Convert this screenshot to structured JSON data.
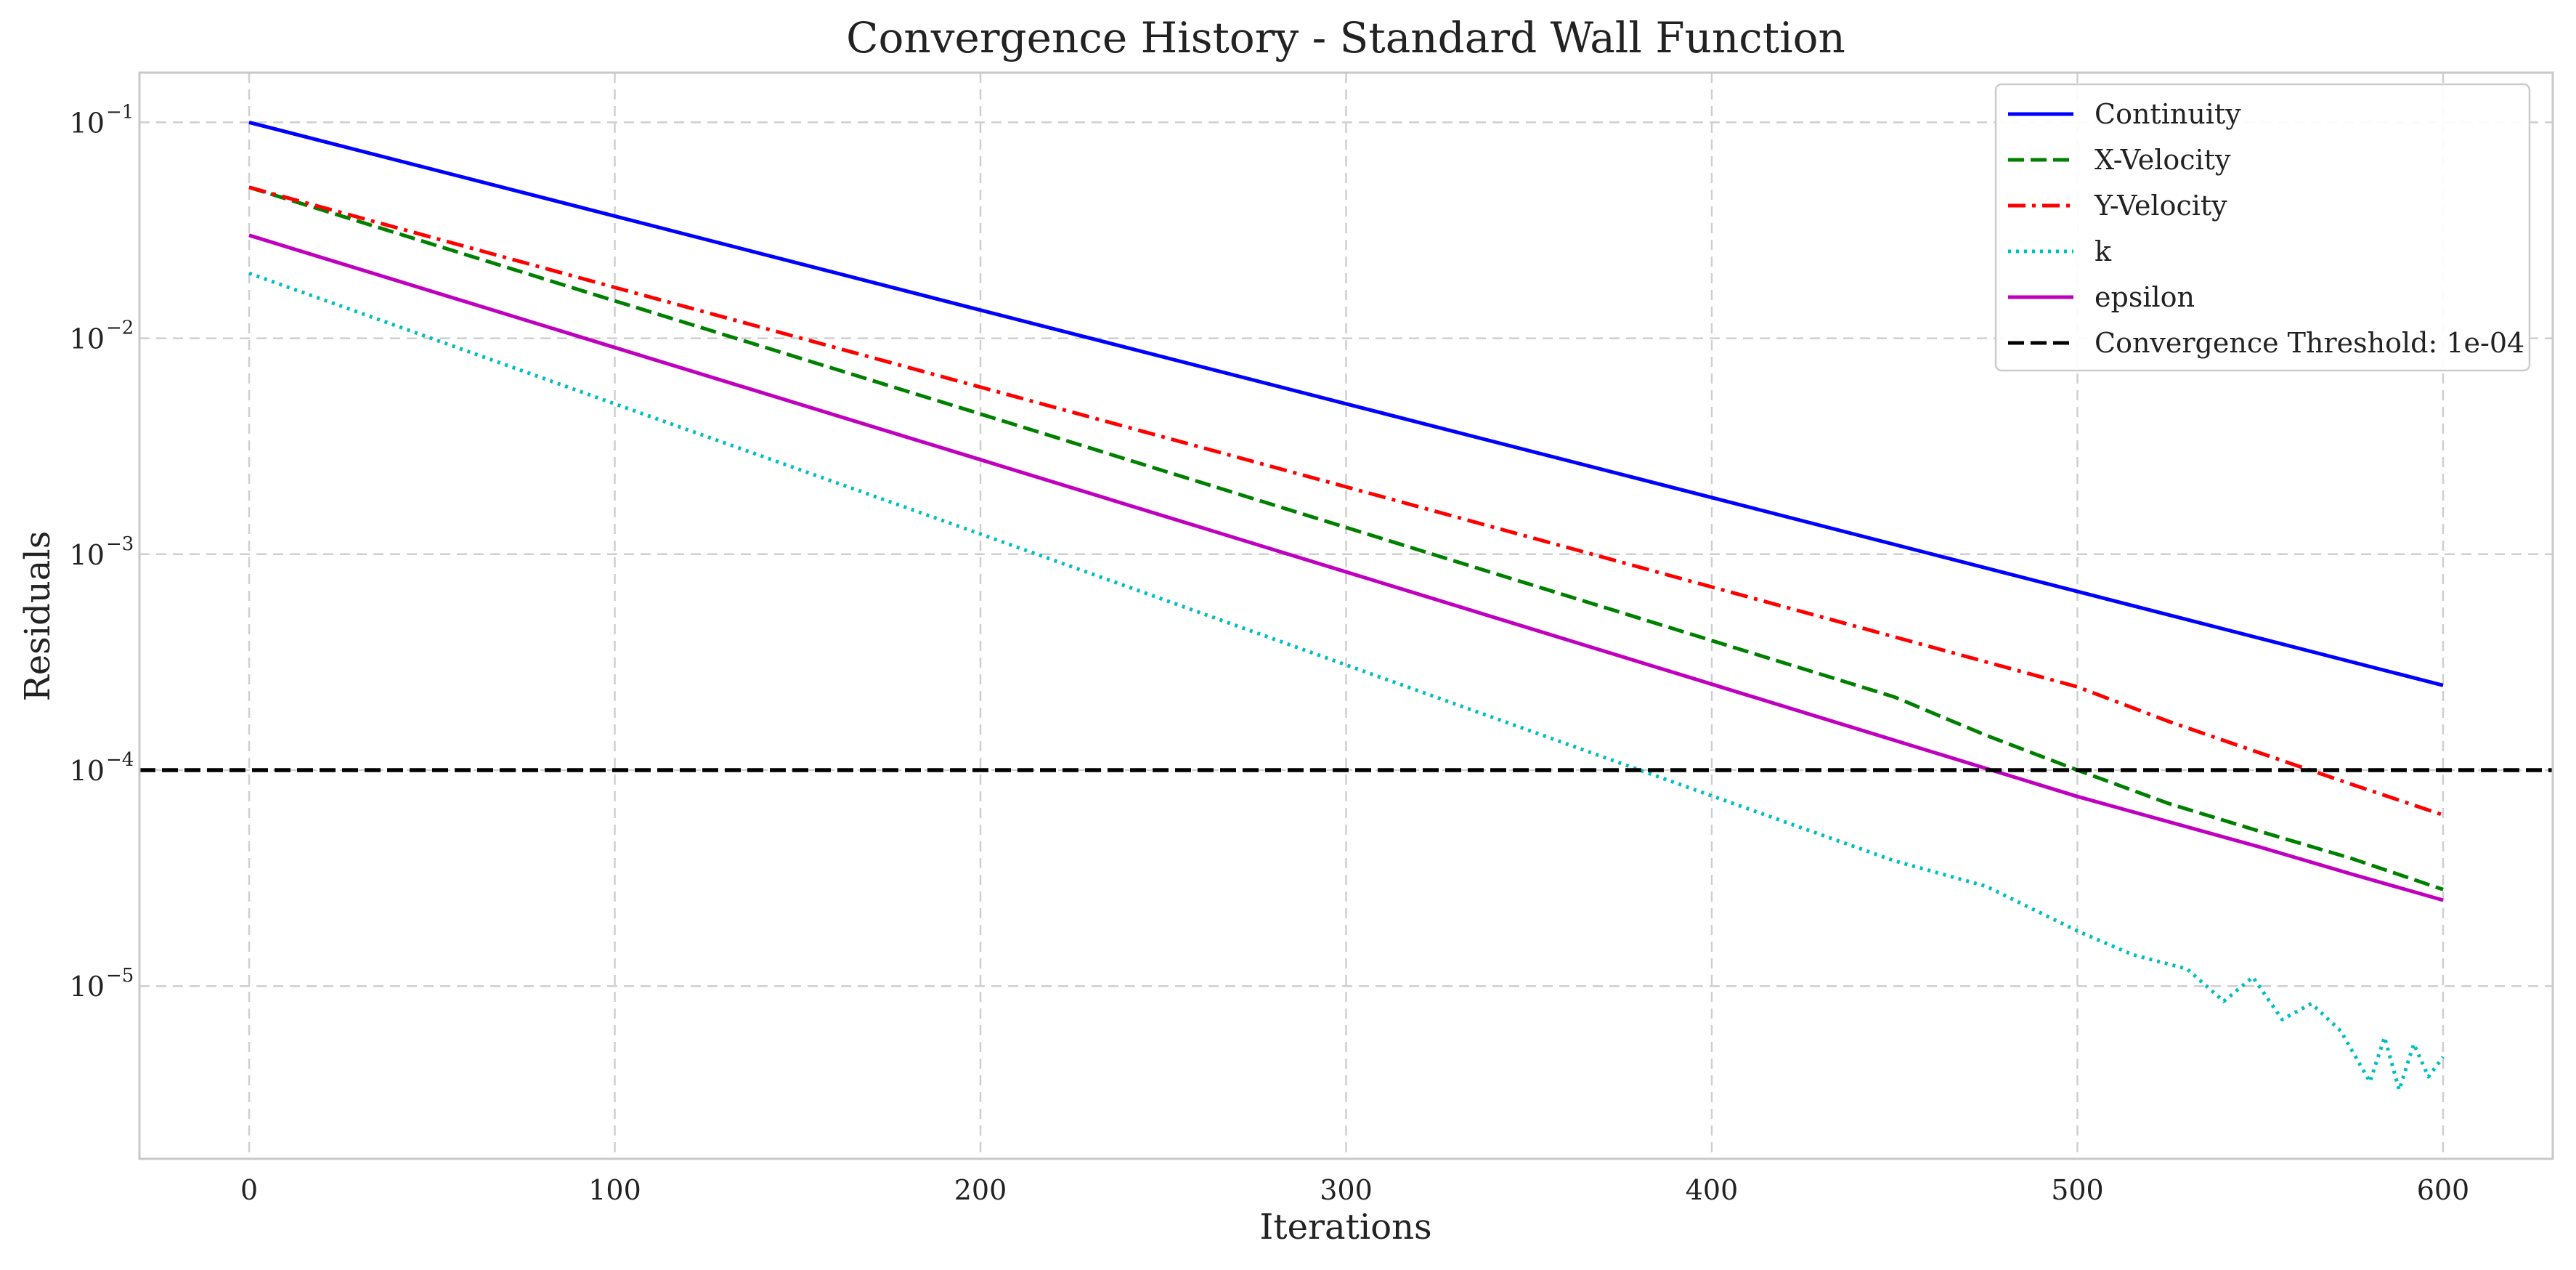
{
  "chart_data": {
    "type": "line",
    "title": "Convergence History - Standard Wall Function",
    "xlabel": "Iterations",
    "ylabel": "Residuals",
    "xlim": [
      -30,
      630
    ],
    "ylim_log10": [
      -5.8,
      -0.77
    ],
    "y_scale": "log",
    "grid": true,
    "legend_position": "top-right",
    "x_ticks": [
      {
        "value": 0,
        "label": "0"
      },
      {
        "value": 100,
        "label": "100"
      },
      {
        "value": 200,
        "label": "200"
      },
      {
        "value": 300,
        "label": "300"
      },
      {
        "value": 400,
        "label": "400"
      },
      {
        "value": 500,
        "label": "500"
      },
      {
        "value": 600,
        "label": "600"
      }
    ],
    "y_ticks": [
      {
        "log10": -1,
        "base": "10",
        "exp": "−1"
      },
      {
        "log10": -2,
        "base": "10",
        "exp": "−2"
      },
      {
        "log10": -3,
        "base": "10",
        "exp": "−3"
      },
      {
        "log10": -4,
        "base": "10",
        "exp": "−4"
      },
      {
        "log10": -5,
        "base": "10",
        "exp": "−5"
      }
    ],
    "threshold": {
      "name": "Convergence Threshold: 1e-04",
      "value": 0.0001,
      "color": "#000000",
      "style": "dashed"
    },
    "series": [
      {
        "name": "Continuity",
        "color": "#0000ff",
        "style": "solid",
        "x": [
          0,
          100,
          200,
          300,
          400,
          500,
          600
        ],
        "values": [
          0.1,
          0.0368,
          0.0135,
          0.00497,
          0.00183,
          0.000672,
          0.000247
        ]
      },
      {
        "name": "X-Velocity",
        "color": "#008000",
        "style": "dashed",
        "x": [
          0,
          100,
          200,
          300,
          400,
          450,
          475,
          500,
          525,
          550,
          575,
          600
        ],
        "values": [
          0.05,
          0.0149,
          0.00446,
          0.00133,
          0.000398,
          0.000218,
          0.000145,
          0.0001,
          7e-05,
          5.2e-05,
          3.9e-05,
          2.8e-05
        ]
      },
      {
        "name": "Y-Velocity",
        "color": "#ff0000",
        "style": "dashdot",
        "x": [
          0,
          100,
          200,
          300,
          400,
          500,
          525,
          550,
          575,
          600
        ],
        "values": [
          0.05,
          0.0172,
          0.00594,
          0.00205,
          0.000705,
          0.000243,
          0.000168,
          0.00012,
          8.6e-05,
          6.2e-05
        ]
      },
      {
        "name": "k",
        "color": "#00bfbf",
        "style": "dotted",
        "x": [
          0,
          100,
          200,
          300,
          400,
          450,
          475,
          500,
          515,
          530,
          540,
          548,
          556,
          564,
          572,
          580,
          584,
          588,
          592,
          596,
          600
        ],
        "values": [
          0.02,
          0.00497,
          0.00124,
          0.000307,
          7.6e-05,
          3.8e-05,
          2.9e-05,
          1.8e-05,
          1.4e-05,
          1.2e-05,
          8.5e-06,
          1.1e-05,
          7e-06,
          8.3e-06,
          6.2e-06,
          3.6e-06,
          5.8e-06,
          3.3e-06,
          5.4e-06,
          3.8e-06,
          4.7e-06
        ]
      },
      {
        "name": "epsilon",
        "color": "#bf00bf",
        "style": "solid",
        "x": [
          0,
          100,
          200,
          300,
          400,
          500,
          550,
          575,
          600
        ],
        "values": [
          0.03,
          0.00906,
          0.00274,
          0.000828,
          0.00025,
          7.55e-05,
          4.4e-05,
          3.3e-05,
          2.5e-05
        ]
      }
    ]
  }
}
